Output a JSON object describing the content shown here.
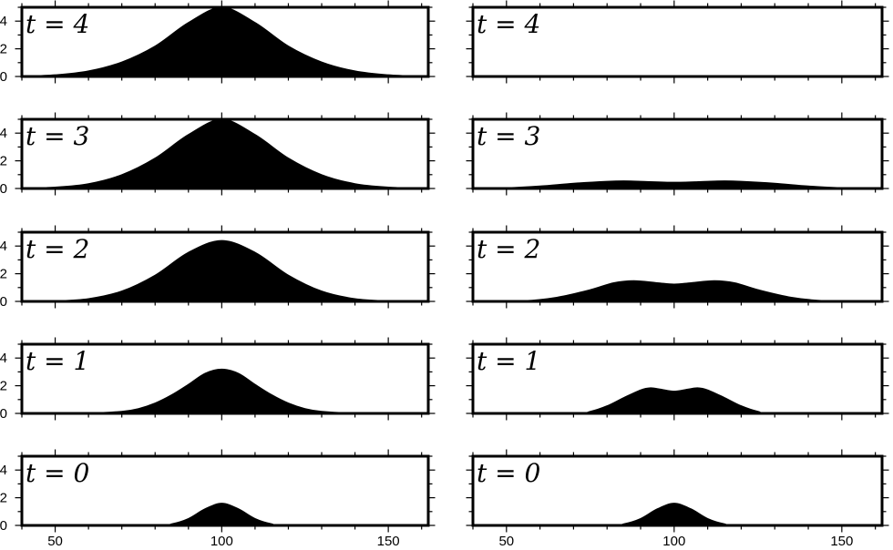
{
  "chart_data": {
    "type": "area",
    "x_range": [
      40,
      162
    ],
    "y_range": [
      0,
      5
    ],
    "x_ticks": [
      50,
      100,
      150
    ],
    "y_ticks": [
      0,
      2,
      4
    ],
    "panels": [
      {
        "column": "left",
        "time_label": "t = 4",
        "x": [
          40,
          50,
          60,
          70,
          80,
          90,
          100,
          110,
          120,
          130,
          140,
          150,
          160,
          162
        ],
        "values": [
          0.02,
          0.12,
          0.4,
          1.05,
          2.2,
          3.9,
          5.0,
          3.9,
          2.2,
          1.05,
          0.4,
          0.12,
          0.02,
          0.01
        ]
      },
      {
        "column": "left",
        "time_label": "t = 3",
        "x": [
          40,
          50,
          60,
          70,
          80,
          90,
          100,
          110,
          120,
          130,
          140,
          150,
          160,
          162
        ],
        "values": [
          0.02,
          0.1,
          0.35,
          1.0,
          2.2,
          3.9,
          5.0,
          3.9,
          2.2,
          1.0,
          0.35,
          0.1,
          0.02,
          0.01
        ]
      },
      {
        "column": "left",
        "time_label": "t = 2",
        "x": [
          40,
          50,
          60,
          70,
          80,
          90,
          100,
          110,
          120,
          130,
          140,
          150,
          160,
          162
        ],
        "values": [
          0.0,
          0.04,
          0.2,
          0.75,
          1.9,
          3.55,
          4.4,
          3.55,
          1.9,
          0.75,
          0.2,
          0.04,
          0.0,
          0.0
        ]
      },
      {
        "column": "left",
        "time_label": "t = 1",
        "x": [
          40,
          60,
          70,
          75,
          80,
          85,
          90,
          95,
          100,
          105,
          110,
          115,
          120,
          125,
          130,
          140,
          162
        ],
        "values": [
          0.0,
          0.03,
          0.15,
          0.35,
          0.75,
          1.35,
          2.1,
          2.9,
          3.2,
          2.9,
          2.1,
          1.35,
          0.75,
          0.35,
          0.15,
          0.03,
          0.0
        ]
      },
      {
        "column": "left",
        "time_label": "t = 0",
        "x": [
          40,
          80,
          85,
          90,
          95,
          100,
          105,
          110,
          115,
          120,
          162
        ],
        "values": [
          0.0,
          0.02,
          0.12,
          0.5,
          1.2,
          1.6,
          1.2,
          0.5,
          0.12,
          0.02,
          0.0
        ]
      },
      {
        "column": "right",
        "time_label": "t = 4",
        "x": [
          40,
          50,
          70,
          85,
          100,
          115,
          130,
          150,
          162
        ],
        "values": [
          0.0,
          0.01,
          0.03,
          0.06,
          0.05,
          0.06,
          0.03,
          0.01,
          0.0
        ]
      },
      {
        "column": "right",
        "time_label": "t = 3",
        "x": [
          40,
          50,
          60,
          70,
          80,
          85,
          90,
          100,
          110,
          115,
          120,
          130,
          140,
          150,
          162
        ],
        "values": [
          0.0,
          0.05,
          0.18,
          0.38,
          0.52,
          0.55,
          0.52,
          0.45,
          0.52,
          0.55,
          0.52,
          0.38,
          0.18,
          0.05,
          0.0
        ]
      },
      {
        "column": "right",
        "time_label": "t = 2",
        "x": [
          40,
          55,
          65,
          75,
          82,
          88,
          95,
          100,
          105,
          112,
          118,
          125,
          135,
          145,
          162
        ],
        "values": [
          0.0,
          0.05,
          0.3,
          0.85,
          1.35,
          1.5,
          1.35,
          1.25,
          1.35,
          1.5,
          1.35,
          0.85,
          0.3,
          0.05,
          0.0
        ]
      },
      {
        "column": "right",
        "time_label": "t = 1",
        "x": [
          40,
          70,
          75,
          80,
          85,
          90,
          93,
          96,
          100,
          104,
          107,
          110,
          115,
          120,
          125,
          130,
          162
        ],
        "values": [
          0.0,
          0.02,
          0.15,
          0.55,
          1.15,
          1.7,
          1.85,
          1.75,
          1.6,
          1.75,
          1.85,
          1.7,
          1.15,
          0.55,
          0.15,
          0.02,
          0.0
        ]
      },
      {
        "column": "right",
        "time_label": "t = 0",
        "x": [
          40,
          80,
          85,
          90,
          95,
          100,
          105,
          110,
          115,
          120,
          162
        ],
        "values": [
          0.0,
          0.02,
          0.12,
          0.5,
          1.2,
          1.6,
          1.2,
          0.5,
          0.12,
          0.02,
          0.0
        ]
      }
    ]
  }
}
